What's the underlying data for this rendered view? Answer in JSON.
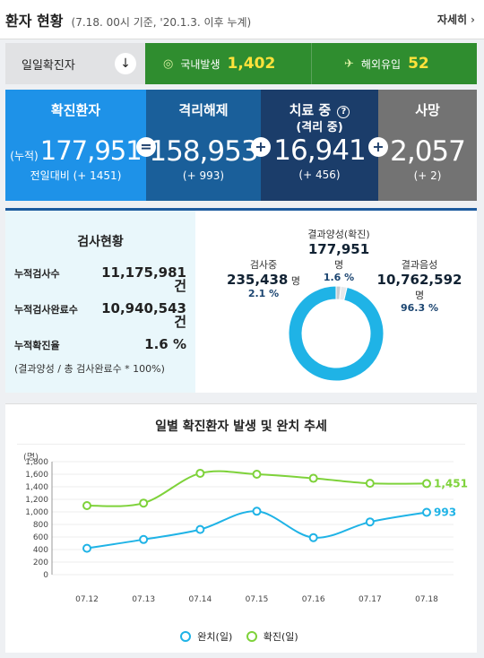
{
  "header": {
    "title": "환자 현황",
    "subtitle": "(7.18. 00시 기준, '20.1.3. 이후 누계)",
    "more_label": "자세히"
  },
  "daily": {
    "label": "일일확진자",
    "domestic_label": "국내발생",
    "domestic_value": "1,402",
    "overseas_label": "해외유입",
    "overseas_value": "52"
  },
  "stats": {
    "confirmed": {
      "title": "확진환자",
      "prefix": "(누적)",
      "value": "177,951",
      "delta": "전일대비 (+ 1451)"
    },
    "released": {
      "title": "격리해제",
      "value": "158,953",
      "delta": "(+ 993)"
    },
    "treatment": {
      "title": "치료 중",
      "subtitle": "(격리 중)",
      "value": "16,941",
      "delta": "(+ 456)"
    },
    "deaths": {
      "title": "사망",
      "value": "2,057",
      "delta": "(+ 2)"
    },
    "ops": {
      "eq": "=",
      "plus": "+"
    },
    "help_icon": "?"
  },
  "tests": {
    "title": "검사현황",
    "rows": [
      {
        "label": "누적검사수",
        "value": "11,175,981",
        "unit": "건"
      },
      {
        "label": "누적검사완료수",
        "value": "10,940,543",
        "unit": "건"
      },
      {
        "label": "누적확진율",
        "value": "1.6 %"
      }
    ],
    "note": "(결과양성 / 총 검사완료수 * 100%)",
    "donut": {
      "positive": {
        "label": "결과양성(확진)",
        "value": "177,951",
        "unit": "명",
        "pct": "1.6 %",
        "share": 1.6,
        "color": "#c8ccd0"
      },
      "testing": {
        "label": "검사중",
        "value": "235,438",
        "unit": "명",
        "pct": "2.1 %",
        "share": 2.1,
        "color": "#e6e9ec"
      },
      "negative": {
        "label": "결과음성",
        "value": "10,762,592",
        "unit": "명",
        "pct": "96.3 %",
        "share": 96.3,
        "color": "#1fb3e6"
      }
    }
  },
  "chart_title": "일별 확진환자 발생 및 완치 추세",
  "chart_data": {
    "type": "line",
    "y_unit": "(명)",
    "categories": [
      "07.12",
      "07.13",
      "07.14",
      "07.15",
      "07.16",
      "07.17",
      "07.18"
    ],
    "ylim": [
      0,
      1800
    ],
    "yticks": [
      "1,800",
      "1,600",
      "1,400",
      "1,200",
      "1,000",
      "800",
      "600",
      "400",
      "200",
      "0"
    ],
    "grid": true,
    "legend_position": "bottom",
    "series": [
      {
        "name": "완치(일)",
        "color": "#1fb3e6",
        "values": [
          420,
          560,
          720,
          1010,
          590,
          840,
          993
        ],
        "end_label": "993"
      },
      {
        "name": "확진(일)",
        "color": "#7ed23a",
        "values": [
          1100,
          1140,
          1615,
          1600,
          1535,
          1455,
          1451
        ],
        "end_label": "1,451"
      }
    ]
  }
}
